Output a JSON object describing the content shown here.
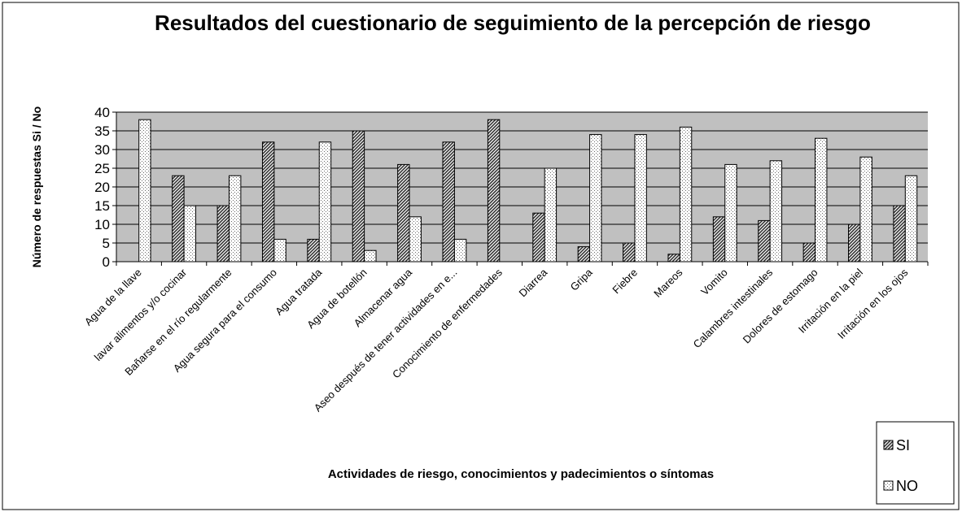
{
  "chart_data": {
    "type": "bar",
    "title": "Resultados del cuestionario de seguimiento de la percepción de riesgo",
    "x_label": "Actividades de riesgo, conocimientos y padecimientos o síntomas",
    "y_label": "Número de respuestas Si / No",
    "categories": [
      "Agua de la llave",
      "lavar alimentos y/o cocinar",
      "Bañarse en el río regularmente",
      "Agua segura para el consumo",
      "Agua tratada",
      "Agua de botellón",
      "Almacenar agua",
      "Aseo después de tener actividades en e...",
      "Conocimiento de enfermedades",
      "Diarrea",
      "Gripa",
      "Fiebre",
      "Mareos",
      "Vomito",
      "Calambres intestinales",
      "Dolores de estomago",
      "Irritación en la piel",
      "Irritación en los ojos"
    ],
    "series": [
      {
        "name": "SI",
        "color": "#333333",
        "values": [
          0,
          23,
          15,
          32,
          6,
          35,
          26,
          32,
          38,
          13,
          4,
          5,
          2,
          12,
          11,
          5,
          10,
          15
        ]
      },
      {
        "name": "NO",
        "color": "#ffffff",
        "values": [
          38,
          15,
          23,
          6,
          32,
          3,
          12,
          6,
          0,
          25,
          34,
          34,
          36,
          26,
          27,
          33,
          28,
          23
        ]
      }
    ],
    "ylim": [
      0,
      40
    ],
    "yticks": [
      0,
      5,
      10,
      15,
      20,
      25,
      30,
      35,
      40
    ],
    "grid": true,
    "legend": "bottom-right"
  }
}
